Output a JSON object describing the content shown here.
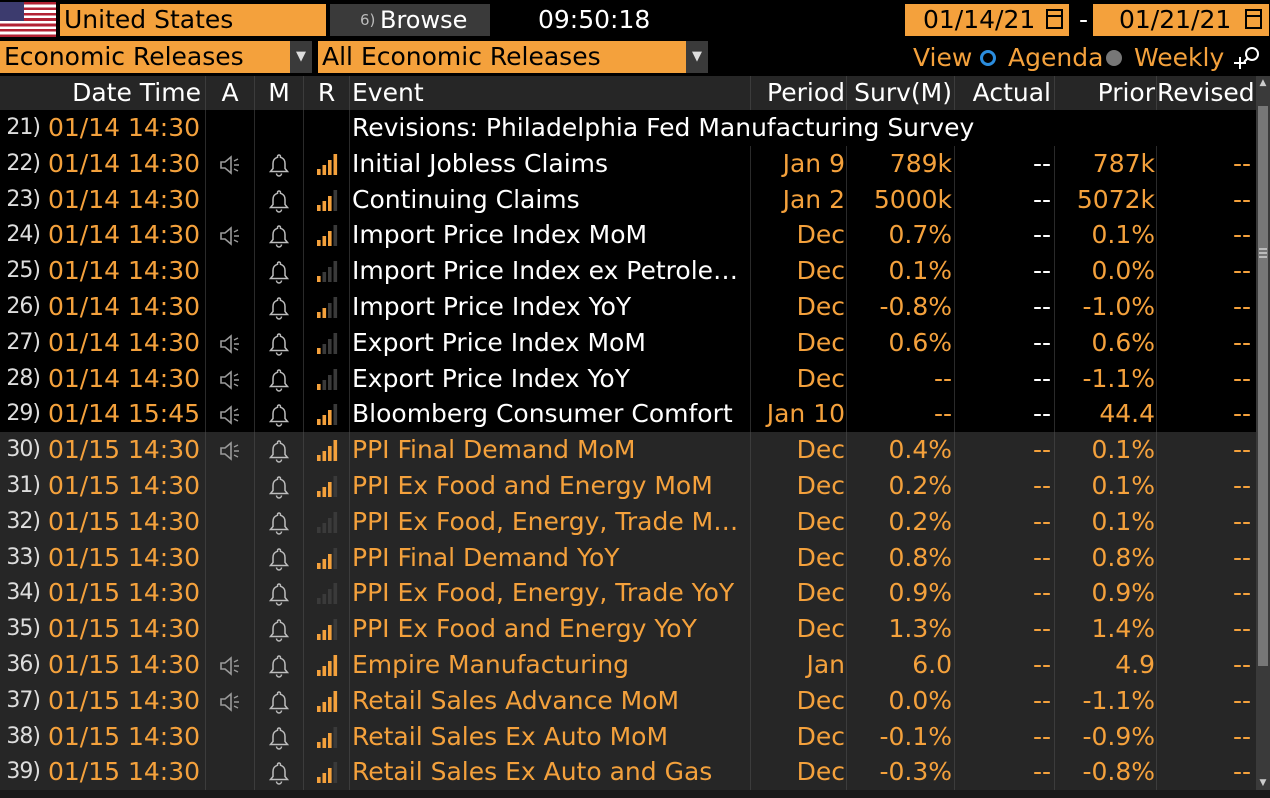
{
  "topbar": {
    "country": "United States",
    "browse_label": "Browse",
    "browse_mark": "6)",
    "clock": "09:50:18",
    "start_date": "01/14/21",
    "dash": "-",
    "end_date": "01/21/21"
  },
  "filters": {
    "category": "Economic Releases",
    "subset": "All Economic Releases",
    "view_label": "View",
    "agenda_label": "Agenda",
    "weekly_label": "Weekly"
  },
  "columns": {
    "datetime": "Date Time",
    "alert": "A",
    "monitor": "M",
    "relevance": "R",
    "event": "Event",
    "period": "Period",
    "survey": "Surv(M)",
    "actual": "Actual",
    "prior": "Prior",
    "revised": "Revised"
  },
  "colors": {
    "accent": "#f4a13c",
    "background": "#000000",
    "row_alt": "#262626",
    "radio_on": "#2b8dde"
  },
  "rows": [
    {
      "num": "21)",
      "dt": "01/14 14:30",
      "speaker": false,
      "bell": false,
      "rel": 0,
      "event": "Revisions: Philadelphia Fed Manufacturing Survey",
      "period": "",
      "surv": "",
      "actual": "",
      "prior": "",
      "revised": "",
      "group": "today"
    },
    {
      "num": "22)",
      "dt": "01/14 14:30",
      "speaker": true,
      "bell": true,
      "rel": 4,
      "event": "Initial Jobless Claims",
      "period": "Jan 9",
      "surv": "789k",
      "actual": "--",
      "prior": "787k",
      "revised": "--",
      "group": "today"
    },
    {
      "num": "23)",
      "dt": "01/14 14:30",
      "speaker": false,
      "bell": true,
      "rel": 3,
      "event": "Continuing Claims",
      "period": "Jan 2",
      "surv": "5000k",
      "actual": "--",
      "prior": "5072k",
      "revised": "--",
      "group": "today"
    },
    {
      "num": "24)",
      "dt": "01/14 14:30",
      "speaker": true,
      "bell": true,
      "rel": 3,
      "event": "Import Price Index MoM",
      "period": "Dec",
      "surv": "0.7%",
      "actual": "--",
      "prior": "0.1%",
      "revised": "--",
      "group": "today"
    },
    {
      "num": "25)",
      "dt": "01/14 14:30",
      "speaker": false,
      "bell": true,
      "rel": 1,
      "event": "Import Price Index ex Petrole…",
      "period": "Dec",
      "surv": "0.1%",
      "actual": "--",
      "prior": "0.0%",
      "revised": "--",
      "group": "today"
    },
    {
      "num": "26)",
      "dt": "01/14 14:30",
      "speaker": false,
      "bell": true,
      "rel": 2,
      "event": "Import Price Index YoY",
      "period": "Dec",
      "surv": "-0.8%",
      "actual": "--",
      "prior": "-1.0%",
      "revised": "--",
      "group": "today"
    },
    {
      "num": "27)",
      "dt": "01/14 14:30",
      "speaker": true,
      "bell": true,
      "rel": 1,
      "event": "Export Price Index MoM",
      "period": "Dec",
      "surv": "0.6%",
      "actual": "--",
      "prior": "0.6%",
      "revised": "--",
      "group": "today"
    },
    {
      "num": "28)",
      "dt": "01/14 14:30",
      "speaker": true,
      "bell": true,
      "rel": 1,
      "event": "Export Price Index YoY",
      "period": "Dec",
      "surv": "--",
      "actual": "--",
      "prior": "-1.1%",
      "revised": "--",
      "group": "today"
    },
    {
      "num": "29)",
      "dt": "01/14 15:45",
      "speaker": true,
      "bell": true,
      "rel": 3,
      "event": "Bloomberg Consumer Comfort",
      "period": "Jan 10",
      "surv": "--",
      "actual": "--",
      "prior": "44.4",
      "revised": "--",
      "group": "today"
    },
    {
      "num": "30)",
      "dt": "01/15 14:30",
      "speaker": true,
      "bell": true,
      "rel": 4,
      "event": "PPI Final Demand MoM",
      "period": "Dec",
      "surv": "0.4%",
      "actual": "--",
      "prior": "0.1%",
      "revised": "--",
      "group": "next"
    },
    {
      "num": "31)",
      "dt": "01/15 14:30",
      "speaker": false,
      "bell": true,
      "rel": 3,
      "event": "PPI Ex Food and Energy MoM",
      "period": "Dec",
      "surv": "0.2%",
      "actual": "--",
      "prior": "0.1%",
      "revised": "--",
      "group": "next"
    },
    {
      "num": "32)",
      "dt": "01/15 14:30",
      "speaker": false,
      "bell": true,
      "rel": 0,
      "event": "PPI Ex Food, Energy, Trade Mo…",
      "period": "Dec",
      "surv": "0.2%",
      "actual": "--",
      "prior": "0.1%",
      "revised": "--",
      "group": "next"
    },
    {
      "num": "33)",
      "dt": "01/15 14:30",
      "speaker": false,
      "bell": true,
      "rel": 3,
      "event": "PPI Final Demand YoY",
      "period": "Dec",
      "surv": "0.8%",
      "actual": "--",
      "prior": "0.8%",
      "revised": "--",
      "group": "next"
    },
    {
      "num": "34)",
      "dt": "01/15 14:30",
      "speaker": false,
      "bell": true,
      "rel": 0,
      "event": "PPI Ex Food, Energy, Trade YoY",
      "period": "Dec",
      "surv": "0.9%",
      "actual": "--",
      "prior": "0.9%",
      "revised": "--",
      "group": "next"
    },
    {
      "num": "35)",
      "dt": "01/15 14:30",
      "speaker": false,
      "bell": true,
      "rel": 3,
      "event": "PPI Ex Food and Energy YoY",
      "period": "Dec",
      "surv": "1.3%",
      "actual": "--",
      "prior": "1.4%",
      "revised": "--",
      "group": "next"
    },
    {
      "num": "36)",
      "dt": "01/15 14:30",
      "speaker": true,
      "bell": true,
      "rel": 4,
      "event": "Empire Manufacturing",
      "period": "Jan",
      "surv": "6.0",
      "actual": "--",
      "prior": "4.9",
      "revised": "--",
      "group": "next"
    },
    {
      "num": "37)",
      "dt": "01/15 14:30",
      "speaker": true,
      "bell": true,
      "rel": 4,
      "event": "Retail Sales Advance MoM",
      "period": "Dec",
      "surv": "0.0%",
      "actual": "--",
      "prior": "-1.1%",
      "revised": "--",
      "group": "next"
    },
    {
      "num": "38)",
      "dt": "01/15 14:30",
      "speaker": false,
      "bell": true,
      "rel": 3,
      "event": "Retail Sales Ex Auto MoM",
      "period": "Dec",
      "surv": "-0.1%",
      "actual": "--",
      "prior": "-0.9%",
      "revised": "--",
      "group": "next"
    },
    {
      "num": "39)",
      "dt": "01/15 14:30",
      "speaker": false,
      "bell": true,
      "rel": 3,
      "event": "Retail Sales Ex Auto and Gas",
      "period": "Dec",
      "surv": "-0.3%",
      "actual": "--",
      "prior": "-0.8%",
      "revised": "--",
      "group": "next"
    }
  ]
}
